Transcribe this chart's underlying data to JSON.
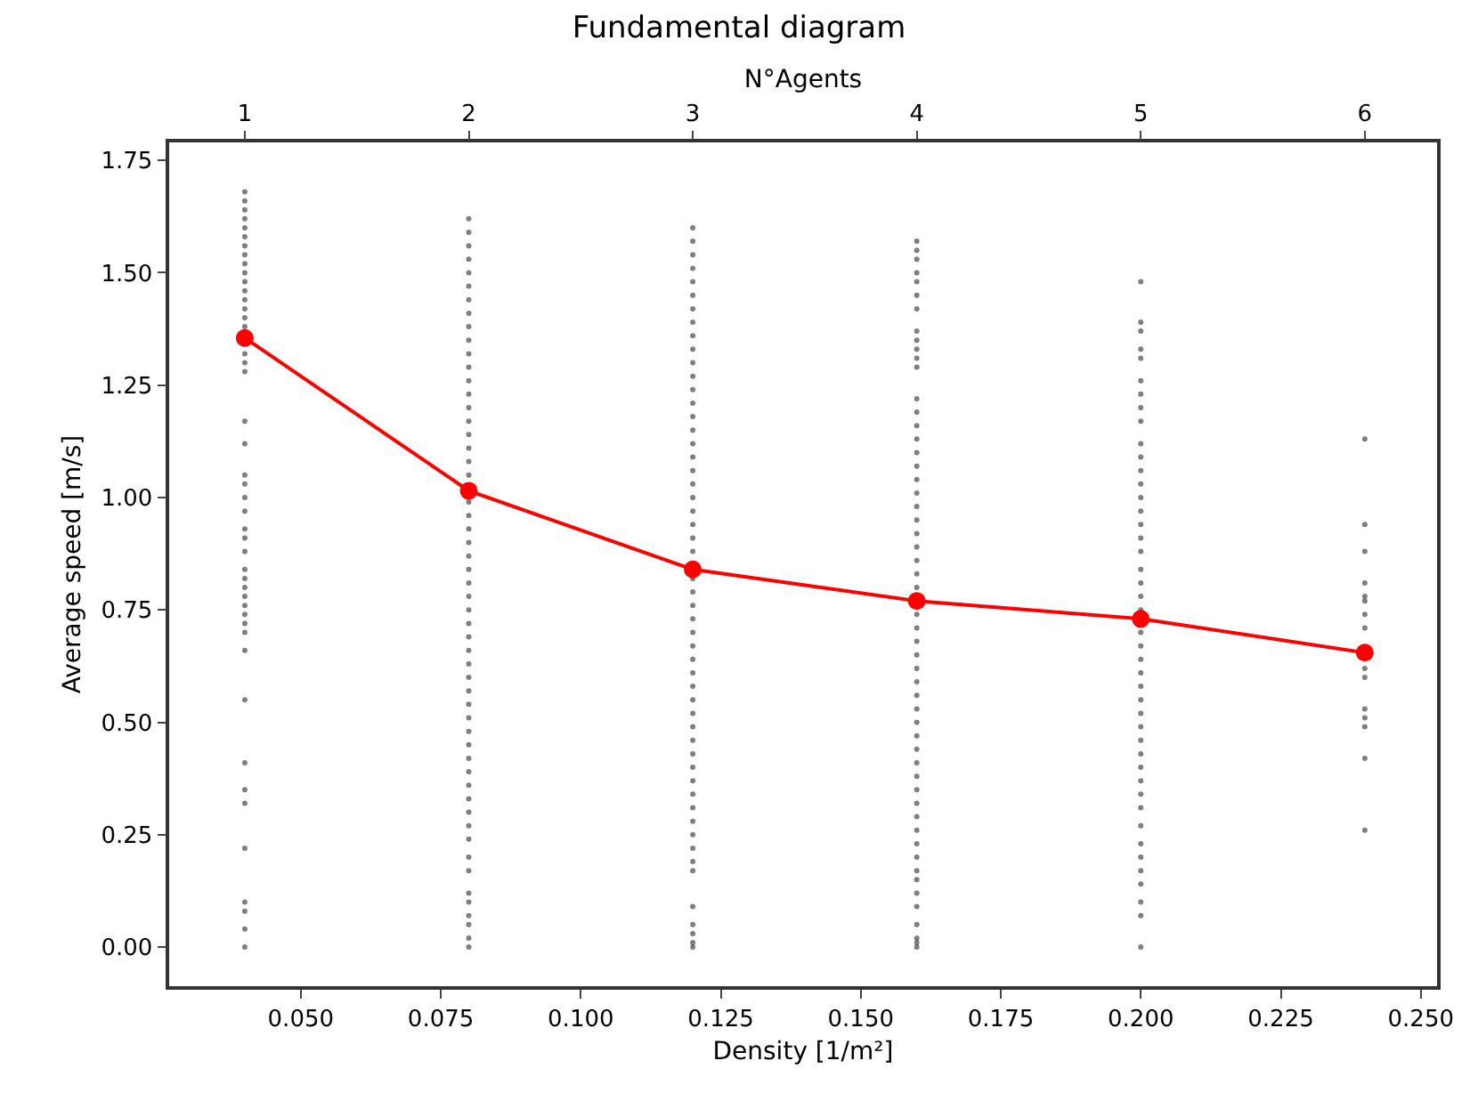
{
  "chart_data": {
    "type": "scatter",
    "title": "Fundamental diagram",
    "xlabel": "Density [1/m²]",
    "ylabel": "Average speed [m/s]",
    "x2label": "N°Agents",
    "xlim": [
      0.0265,
      0.2529
    ],
    "ylim": [
      -0.087,
      1.79
    ],
    "xticks": [
      {
        "value": 0.05,
        "label": "0.050"
      },
      {
        "value": 0.075,
        "label": "0.075"
      },
      {
        "value": 0.1,
        "label": "0.100"
      },
      {
        "value": 0.125,
        "label": "0.125"
      },
      {
        "value": 0.15,
        "label": "0.150"
      },
      {
        "value": 0.175,
        "label": "0.175"
      },
      {
        "value": 0.2,
        "label": "0.200"
      },
      {
        "value": 0.225,
        "label": "0.225"
      },
      {
        "value": 0.25,
        "label": "0.250"
      }
    ],
    "x2lim": [
      0.6625,
      6.3225
    ],
    "x2ticks": [
      1,
      2,
      3,
      4,
      5,
      6
    ],
    "yticks": [
      {
        "value": 0,
        "label": "0.00"
      },
      {
        "value": 0.25,
        "label": "0.25"
      },
      {
        "value": 0.5,
        "label": "0.50"
      },
      {
        "value": 0.75,
        "label": "0.75"
      },
      {
        "value": 1.0,
        "label": "1.00"
      },
      {
        "value": 1.25,
        "label": "1.25"
      },
      {
        "value": 1.5,
        "label": "1.50"
      },
      {
        "value": 1.75,
        "label": "1.75"
      }
    ],
    "series": [
      {
        "marker": "circle",
        "color": "#000000",
        "x": [
          0.04,
          0.04,
          0.04,
          0.04,
          0.04,
          0.04,
          0.04,
          0.04,
          0.04,
          0.04,
          0.04,
          0.04,
          0.04,
          0.04,
          0.04,
          0.04,
          0.04,
          0.04,
          0.04,
          0.04,
          0.04,
          0.04,
          0.04,
          0.04,
          0.04,
          0.04,
          0.04,
          0.04,
          0.04,
          0.04,
          0.04,
          0.04,
          0.04,
          0.04,
          0.04,
          0.04,
          0.04,
          0.04,
          0.04,
          0.04,
          0.04,
          0.04,
          0.04,
          0.04,
          0.04,
          0.04
        ],
        "values": [
          1.68,
          1.66,
          1.64,
          1.62,
          1.6,
          1.58,
          1.56,
          1.54,
          1.52,
          1.5,
          1.48,
          1.46,
          1.44,
          1.42,
          1.4,
          1.38,
          1.32,
          1.3,
          1.28,
          1.17,
          1.12,
          1.05,
          1.03,
          1.0,
          0.97,
          0.93,
          0.91,
          0.88,
          0.84,
          0.82,
          0.8,
          0.78,
          0.76,
          0.74,
          0.72,
          0.7,
          0.66,
          0.55,
          0.41,
          0.35,
          0.32,
          0.22,
          0.1,
          0.08,
          0.04,
          0.0
        ]
      },
      {
        "marker": "circle",
        "color": "#000000",
        "x": [
          0.08,
          0.08,
          0.08,
          0.08,
          0.08,
          0.08,
          0.08,
          0.08,
          0.08,
          0.08,
          0.08,
          0.08,
          0.08,
          0.08,
          0.08,
          0.08,
          0.08,
          0.08,
          0.08,
          0.08,
          0.08,
          0.08,
          0.08,
          0.08,
          0.08,
          0.08,
          0.08,
          0.08,
          0.08,
          0.08,
          0.08,
          0.08,
          0.08,
          0.08,
          0.08,
          0.08,
          0.08,
          0.08,
          0.08,
          0.08,
          0.08,
          0.08,
          0.08,
          0.08,
          0.08,
          0.08,
          0.08,
          0.08,
          0.08,
          0.08,
          0.08,
          0.08,
          0.08,
          0.08
        ],
        "values": [
          1.62,
          1.59,
          1.56,
          1.53,
          1.5,
          1.47,
          1.44,
          1.41,
          1.38,
          1.35,
          1.32,
          1.29,
          1.26,
          1.23,
          1.2,
          1.17,
          1.14,
          1.11,
          1.08,
          1.05,
          0.99,
          0.96,
          0.93,
          0.9,
          0.87,
          0.84,
          0.81,
          0.78,
          0.75,
          0.72,
          0.69,
          0.66,
          0.63,
          0.6,
          0.57,
          0.54,
          0.51,
          0.48,
          0.45,
          0.42,
          0.39,
          0.36,
          0.33,
          0.3,
          0.27,
          0.24,
          0.2,
          0.17,
          0.12,
          0.1,
          0.07,
          0.05,
          0.02,
          0.0
        ]
      },
      {
        "marker": "circle",
        "color": "#000000",
        "x": [
          0.12,
          0.12,
          0.12,
          0.12,
          0.12,
          0.12,
          0.12,
          0.12,
          0.12,
          0.12,
          0.12,
          0.12,
          0.12,
          0.12,
          0.12,
          0.12,
          0.12,
          0.12,
          0.12,
          0.12,
          0.12,
          0.12,
          0.12,
          0.12,
          0.12,
          0.12,
          0.12,
          0.12,
          0.12,
          0.12,
          0.12,
          0.12,
          0.12,
          0.12,
          0.12,
          0.12,
          0.12,
          0.12,
          0.12,
          0.12,
          0.12,
          0.12,
          0.12,
          0.12,
          0.12,
          0.12,
          0.12,
          0.12,
          0.12,
          0.12,
          0.12,
          0.12,
          0.12
        ],
        "values": [
          1.6,
          1.57,
          1.54,
          1.51,
          1.48,
          1.45,
          1.42,
          1.39,
          1.36,
          1.33,
          1.3,
          1.27,
          1.24,
          1.21,
          1.18,
          1.15,
          1.12,
          1.09,
          1.06,
          1.03,
          1.0,
          0.97,
          0.94,
          0.91,
          0.88,
          0.82,
          0.79,
          0.76,
          0.73,
          0.7,
          0.67,
          0.64,
          0.61,
          0.58,
          0.55,
          0.52,
          0.49,
          0.46,
          0.43,
          0.4,
          0.37,
          0.34,
          0.31,
          0.28,
          0.25,
          0.22,
          0.19,
          0.17,
          0.09,
          0.05,
          0.03,
          0.01,
          0.0
        ]
      },
      {
        "marker": "circle",
        "color": "#000000",
        "x": [
          0.16,
          0.16,
          0.16,
          0.16,
          0.16,
          0.16,
          0.16,
          0.16,
          0.16,
          0.16,
          0.16,
          0.16,
          0.16,
          0.16,
          0.16,
          0.16,
          0.16,
          0.16,
          0.16,
          0.16,
          0.16,
          0.16,
          0.16,
          0.16,
          0.16,
          0.16,
          0.16,
          0.16,
          0.16,
          0.16,
          0.16,
          0.16,
          0.16,
          0.16,
          0.16,
          0.16,
          0.16,
          0.16,
          0.16,
          0.16,
          0.16,
          0.16,
          0.16,
          0.16,
          0.16,
          0.16,
          0.16,
          0.16,
          0.16,
          0.16,
          0.16,
          0.16,
          0.16,
          0.16
        ],
        "values": [
          1.57,
          1.55,
          1.53,
          1.5,
          1.48,
          1.45,
          1.42,
          1.37,
          1.35,
          1.33,
          1.31,
          1.29,
          1.22,
          1.19,
          1.16,
          1.13,
          1.1,
          1.07,
          1.04,
          1.01,
          0.98,
          0.95,
          0.92,
          0.89,
          0.86,
          0.83,
          0.8,
          0.74,
          0.71,
          0.68,
          0.65,
          0.62,
          0.59,
          0.56,
          0.53,
          0.5,
          0.47,
          0.44,
          0.41,
          0.38,
          0.35,
          0.32,
          0.29,
          0.26,
          0.23,
          0.2,
          0.17,
          0.15,
          0.12,
          0.09,
          0.05,
          0.02,
          0.01,
          0.0
        ]
      },
      {
        "marker": "circle",
        "color": "#000000",
        "x": [
          0.2,
          0.2,
          0.2,
          0.2,
          0.2,
          0.2,
          0.2,
          0.2,
          0.2,
          0.2,
          0.2,
          0.2,
          0.2,
          0.2,
          0.2,
          0.2,
          0.2,
          0.2,
          0.2,
          0.2,
          0.2,
          0.2,
          0.2,
          0.2,
          0.2,
          0.2,
          0.2,
          0.2,
          0.2,
          0.2,
          0.2,
          0.2,
          0.2,
          0.2,
          0.2,
          0.2,
          0.2,
          0.2,
          0.2,
          0.2,
          0.2,
          0.2,
          0.2,
          0.2
        ],
        "values": [
          1.48,
          1.39,
          1.37,
          1.33,
          1.31,
          1.26,
          1.23,
          1.2,
          1.17,
          1.12,
          1.09,
          1.06,
          1.03,
          1.0,
          0.97,
          0.94,
          0.91,
          0.88,
          0.84,
          0.81,
          0.78,
          0.75,
          0.7,
          0.67,
          0.64,
          0.61,
          0.58,
          0.55,
          0.52,
          0.49,
          0.46,
          0.43,
          0.4,
          0.37,
          0.34,
          0.31,
          0.27,
          0.23,
          0.2,
          0.17,
          0.14,
          0.1,
          0.07,
          0.0
        ]
      },
      {
        "marker": "circle",
        "color": "#000000",
        "x": [
          0.24,
          0.24,
          0.24,
          0.24,
          0.24,
          0.24,
          0.24,
          0.24,
          0.24,
          0.24,
          0.24,
          0.24,
          0.24,
          0.24,
          0.24
        ],
        "values": [
          1.13,
          0.94,
          0.88,
          0.81,
          0.78,
          0.77,
          0.74,
          0.71,
          0.62,
          0.6,
          0.53,
          0.51,
          0.49,
          0.42,
          0.26
        ]
      },
      {
        "type": "line",
        "marker": "circle",
        "line_style": "solid",
        "color": "#ff0000",
        "x": [
          0.04,
          0.08,
          0.12,
          0.16,
          0.2,
          0.24
        ],
        "values": [
          1.355,
          1.015,
          0.84,
          0.77,
          0.73,
          0.655
        ]
      }
    ]
  }
}
